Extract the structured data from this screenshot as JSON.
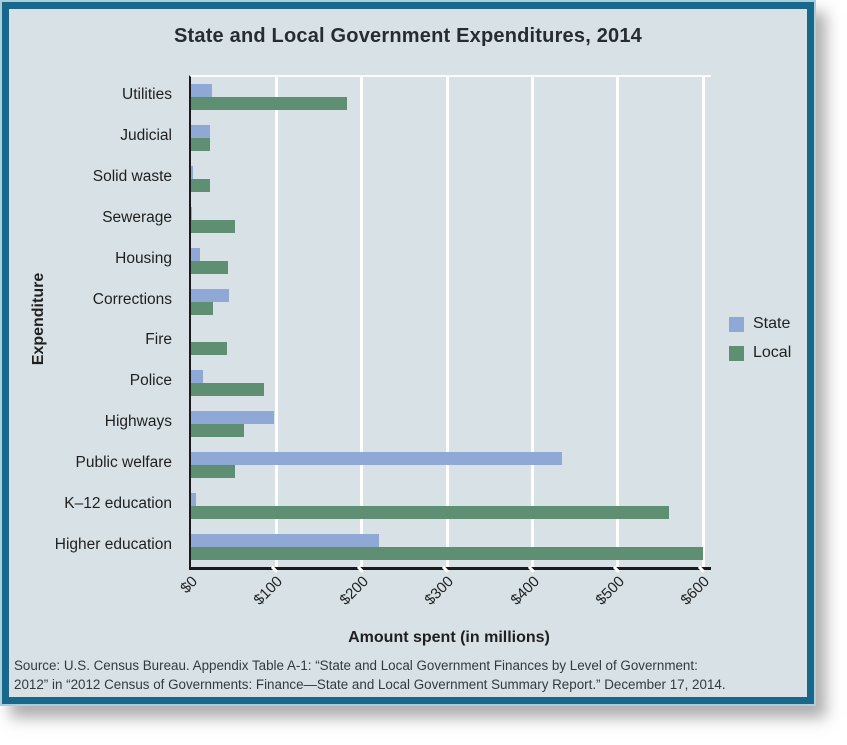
{
  "figure": {
    "title": "State and Local Government Expenditures, 2014",
    "source_line1": "Source: U.S. Census Bureau. Appendix Table A-1: “State and Local Government Finances by Level of Government:",
    "source_line2": "2012” in “2012 Census of Governments: Finance—State and Local Government Summary Report.” December 17, 2014."
  },
  "chart_data": {
    "type": "bar",
    "orientation": "horizontal",
    "title": "State and Local Government Expenditures, 2014",
    "xlabel": "Amount spent (in millions)",
    "ylabel": "Expenditure",
    "categories": [
      "Utilities",
      "Judicial",
      "Solid waste",
      "Sewerage",
      "Housing",
      "Corrections",
      "Fire",
      "Police",
      "Highways",
      "Public welfare",
      "K–12 education",
      "Higher education"
    ],
    "series": [
      {
        "name": "State",
        "color": "#8fa8d6",
        "values": [
          25,
          22,
          2,
          1,
          10,
          45,
          0,
          14,
          97,
          434,
          6,
          220
        ]
      },
      {
        "name": "Local",
        "color": "#5f8f72",
        "values": [
          183,
          22,
          22,
          52,
          43,
          26,
          42,
          85,
          62,
          52,
          560,
          600
        ]
      }
    ],
    "x_ticks": [
      "$0",
      "$100",
      "$200",
      "$300",
      "$400",
      "$500",
      "$600"
    ],
    "x_tick_values": [
      0,
      100,
      200,
      300,
      400,
      500,
      600
    ],
    "xlim": [
      0,
      609
    ],
    "grid": "vertical-white",
    "legend_position": "right-of-plot",
    "bar_order_per_category": [
      "State",
      "Local"
    ]
  },
  "colors": {
    "figure_background": "#d8e2e6",
    "border_teal": "#19688c",
    "border_light": "#a9cfdc",
    "gridline": "#ffffff",
    "axis_line": "#1a1a1a",
    "state_bar": "#8fa8d6",
    "local_bar": "#5f8f72",
    "text": "#1f1f1f"
  }
}
